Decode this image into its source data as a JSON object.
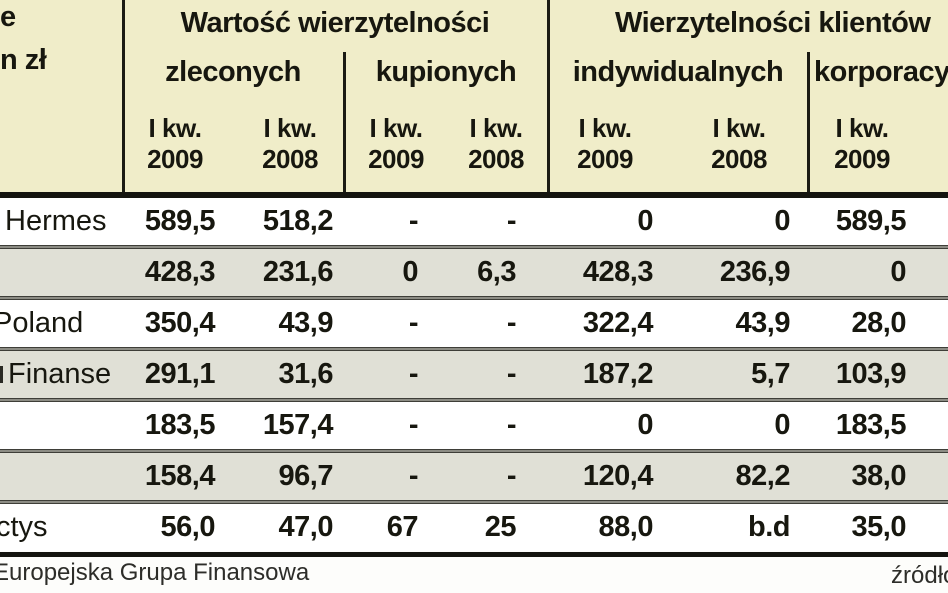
{
  "chart_data": {
    "type": "table",
    "header": {
      "left_fragment_line1": "e",
      "left_fragment_line2": "n zł",
      "groups": [
        {
          "title": "Wartość wierzytelności",
          "subgroups": [
            "zleconych",
            "kupionych"
          ]
        },
        {
          "title": "Wierzytelności klientów",
          "subgroups": [
            "indywidualnych",
            "korporacyjnych"
          ]
        }
      ],
      "periods": [
        {
          "q": "I kw.",
          "y": "2009"
        },
        {
          "q": "I kw.",
          "y": "2008"
        },
        {
          "q": "I kw.",
          "y": "2009"
        },
        {
          "q": "I kw.",
          "y": "2008"
        },
        {
          "q": "I kw.",
          "y": "2009"
        },
        {
          "q": "I kw.",
          "y": "2008"
        },
        {
          "q": "I kw.",
          "y": "2009"
        }
      ]
    },
    "rows": [
      {
        "label": "Hermes",
        "values": [
          "589,5",
          "518,2",
          "-",
          "-",
          "0",
          "0",
          "589,5"
        ]
      },
      {
        "label": "",
        "values": [
          "428,3",
          "231,6",
          "0",
          "6,3",
          "428,3",
          "236,9",
          "0"
        ]
      },
      {
        "label": "Poland",
        "values": [
          "350,4",
          "43,9",
          "-",
          "-",
          "322,4",
          "43,9",
          "28,0"
        ]
      },
      {
        "label": "Finanse",
        "values": [
          "291,1",
          "31,6",
          "-",
          "-",
          "187,2",
          "5,7",
          "103,9"
        ]
      },
      {
        "label": "",
        "values": [
          "183,5",
          "157,4",
          "-",
          "-",
          "0",
          "0",
          "183,5"
        ]
      },
      {
        "label": "",
        "values": [
          "158,4",
          "96,7",
          "-",
          "-",
          "120,4",
          "82,2",
          "38,0"
        ]
      },
      {
        "label": "ctys",
        "values": [
          "56,0",
          "47,0",
          "67",
          "25",
          "88,0",
          "b.d",
          "35,0"
        ]
      }
    ],
    "footer": {
      "left_note": "Europejska Grupa Finansowa",
      "source_label": "źródło:"
    },
    "colors": {
      "header_bg": "#f0edc9",
      "row_white": "#ffffff",
      "row_gray": "#e0e0d6",
      "rule": "#14140f",
      "text": "#17170f"
    }
  }
}
